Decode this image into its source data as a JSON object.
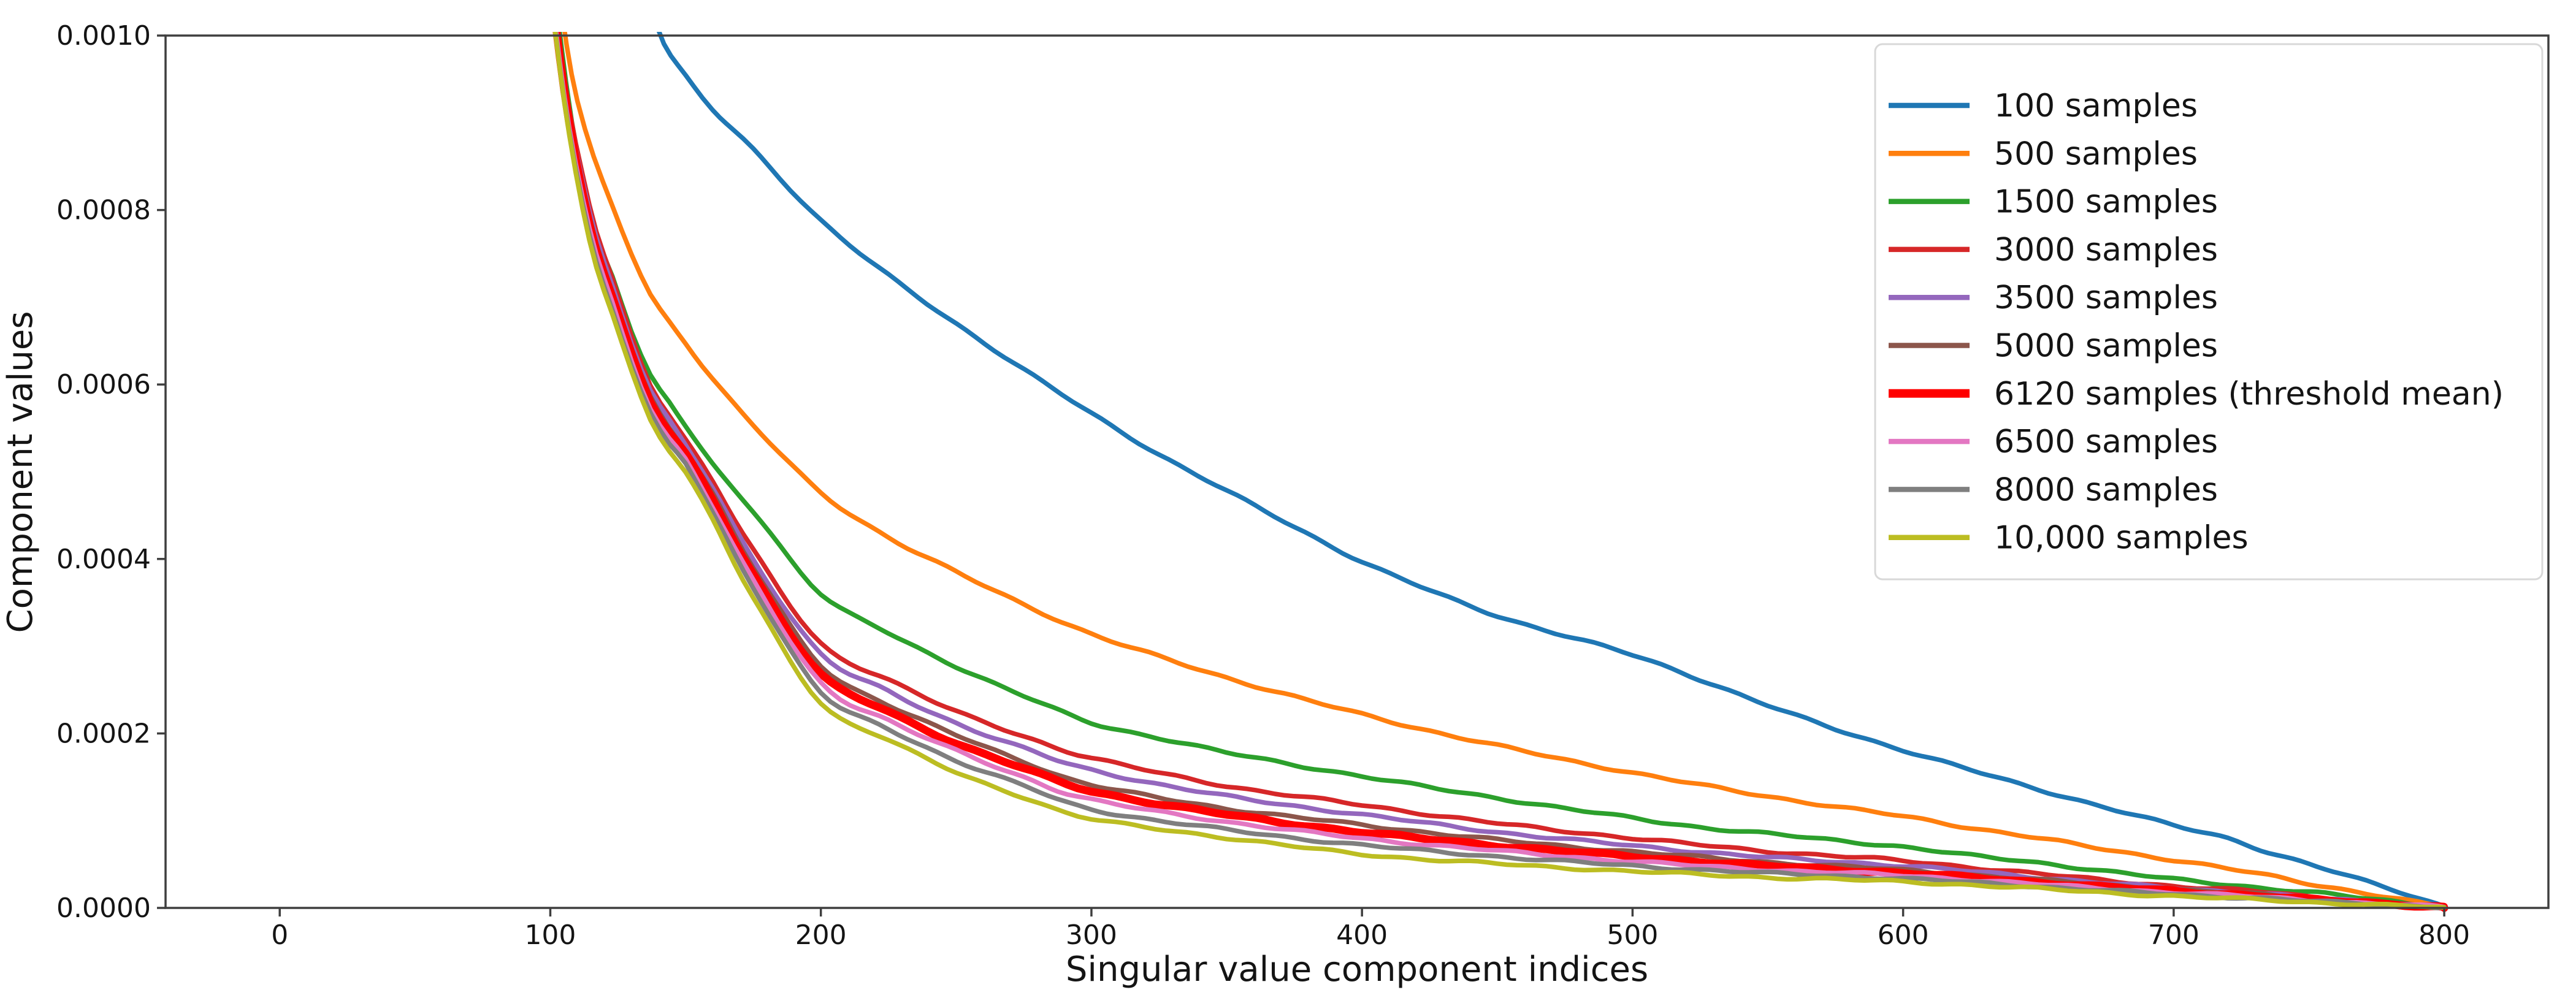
{
  "chart_data": {
    "type": "line",
    "title": "",
    "xlabel": "Singular value component indices",
    "ylabel": "Component values",
    "xlim": [
      -42.2,
      838.5
    ],
    "ylim": [
      0,
      0.001
    ],
    "grid": false,
    "legend_position": "upper right",
    "xticks": {
      "values": [
        0,
        100,
        200,
        300,
        400,
        500,
        600,
        700,
        800
      ],
      "labels": [
        "0",
        "100",
        "200",
        "300",
        "400",
        "500",
        "600",
        "700",
        "800"
      ]
    },
    "yticks": {
      "values": [
        0,
        0.0002,
        0.0004,
        0.0006,
        0.0008,
        0.001
      ],
      "labels": [
        "0.0000",
        "0.0002",
        "0.0004",
        "0.0006",
        "0.0008",
        "0.0010"
      ]
    },
    "series": [
      {
        "name": "100 samples",
        "color": "#1f77b4",
        "linewidth": 7.5,
        "x": [
          135,
          142,
          150,
          160,
          175,
          200,
          225,
          250,
          275,
          300,
          325,
          350,
          375,
          400,
          425,
          450,
          475,
          500,
          525,
          550,
          575,
          600,
          625,
          650,
          675,
          700,
          720,
          735,
          750,
          765,
          780,
          790,
          800
        ],
        "y": [
          0.00105,
          0.00099,
          0.000953,
          0.000915,
          0.00087,
          0.000788,
          0.000725,
          0.00067,
          0.000617,
          0.000567,
          0.00052,
          0.000478,
          0.000437,
          0.000397,
          0.000364,
          0.000335,
          0.000312,
          0.00029,
          0.000262,
          0.000232,
          0.000205,
          0.000181,
          0.000158,
          0.000136,
          0.000115,
          9.45e-05,
          8e-05,
          6.4e-05,
          5e-05,
          3.6e-05,
          2.2e-05,
          1.2e-05,
          2e-06
        ]
      },
      {
        "name": "500 samples",
        "color": "#ff7f0e",
        "linewidth": 7.5,
        "x": [
          102,
          106,
          110,
          116,
          123,
          130,
          137,
          144,
          150,
          160,
          175,
          200,
          225,
          250,
          275,
          300,
          325,
          350,
          375,
          400,
          425,
          450,
          475,
          500,
          525,
          550,
          575,
          600,
          625,
          650,
          675,
          700,
          720,
          735,
          750,
          765,
          780,
          790,
          800
        ],
        "y": [
          0.00108,
          0.00099,
          0.000924,
          0.00086,
          0.000804,
          0.00075,
          0.000703,
          0.000672,
          0.000648,
          0.000607,
          0.000553,
          0.000476,
          0.000425,
          0.000385,
          0.000348,
          0.000314,
          0.000288,
          0.000264,
          0.000242,
          0.000222,
          0.000203,
          0.000186,
          0.00017,
          0.000155,
          0.000141,
          0.000128,
          0.000116,
          0.000105,
          9.2e-05,
          8e-05,
          6.7e-05,
          5.5e-05,
          4.5e-05,
          3.7e-05,
          2.8e-05,
          2e-05,
          1.2e-05,
          6e-06,
          1e-06
        ]
      },
      {
        "name": "1500 samples",
        "color": "#2ca02c",
        "linewidth": 7.5,
        "x": [
          100.5,
          104,
          108,
          115,
          123,
          130,
          137,
          144,
          150,
          160,
          175,
          200,
          225,
          250,
          275,
          300,
          325,
          350,
          375,
          400,
          425,
          450,
          475,
          500,
          525,
          550,
          575,
          600,
          625,
          650,
          675,
          700,
          720,
          735,
          750,
          765,
          780,
          790,
          800
        ],
        "y": [
          0.00108,
          0.00099,
          0.0009,
          0.00079,
          0.000725,
          0.00066,
          0.00061,
          0.00058,
          0.000552,
          0.000508,
          0.000455,
          0.00036,
          0.000315,
          0.000277,
          0.000243,
          0.000212,
          0.000195,
          0.000178,
          0.000164,
          0.000151,
          0.000138,
          0.000126,
          0.000114,
          0.000103,
          9.25e-05,
          8.5e-05,
          7.75e-05,
          7e-05,
          6e-05,
          5.2e-05,
          4.2e-05,
          3.3e-05,
          2.7e-05,
          2.2e-05,
          1.8e-05,
          1.3e-05,
          8e-06,
          4e-06,
          1e-06
        ]
      },
      {
        "name": "3000 samples",
        "color": "#d62728",
        "linewidth": 7.5,
        "x": [
          100,
          103.5,
          107,
          112,
          117,
          123,
          130,
          137,
          144,
          150,
          160,
          175,
          200,
          225,
          250,
          275,
          300,
          350,
          400,
          450,
          500,
          550,
          600,
          650,
          700,
          735,
          750,
          775,
          800
        ],
        "y": [
          0.00108,
          0.00099,
          0.000915,
          0.00084,
          0.000775,
          0.00072,
          0.000655,
          0.0006,
          0.000565,
          0.000537,
          0.00049,
          0.00041,
          0.000303,
          0.000262,
          0.000225,
          0.000197,
          0.000172,
          0.00014,
          0.000118,
          9.7e-05,
          8e-05,
          6.5e-05,
          5.4e-05,
          3.9e-05,
          2.5e-05,
          1.8e-05,
          1.3e-05,
          7e-06,
          1e-06
        ]
      },
      {
        "name": "3500 samples",
        "color": "#9467bd",
        "linewidth": 7.5,
        "x": [
          100,
          103.5,
          107,
          112,
          117,
          123,
          130,
          137,
          144,
          150,
          160,
          175,
          200,
          225,
          250,
          275,
          300,
          350,
          400,
          450,
          500,
          550,
          600,
          650,
          700,
          735,
          750,
          775,
          800
        ],
        "y": [
          0.001075,
          0.000985,
          0.00091,
          0.000833,
          0.000768,
          0.000713,
          0.000648,
          0.000593,
          0.000558,
          0.00053,
          0.000482,
          0.0004,
          0.000291,
          0.000248,
          0.000212,
          0.000183,
          0.000158,
          0.000128,
          0.000107,
          8.7e-05,
          7.14e-05,
          5.8e-05,
          4.83e-05,
          3.5e-05,
          2.24e-05,
          1.6e-05,
          1.15e-05,
          6e-06,
          1e-06
        ]
      },
      {
        "name": "5000 samples",
        "color": "#8c564b",
        "linewidth": 7.5,
        "x": [
          100,
          103.5,
          107,
          112,
          117,
          123,
          130,
          137,
          144,
          150,
          160,
          175,
          200,
          225,
          250,
          275,
          300,
          350,
          400,
          450,
          500,
          550,
          600,
          650,
          700,
          735,
          750,
          775,
          800
        ],
        "y": [
          0.00107,
          0.00098,
          0.000905,
          0.000826,
          0.000761,
          0.000706,
          0.000641,
          0.000586,
          0.000551,
          0.000525,
          0.000475,
          0.00039,
          0.000278,
          0.000233,
          0.000198,
          0.000168,
          0.000141,
          0.000114,
          9.52e-05,
          7.8e-05,
          6.44e-05,
          5.25e-05,
          4.34e-05,
          3.2e-05,
          2.1e-05,
          1.48e-05,
          1.05e-05,
          5.5e-06,
          1e-06
        ]
      },
      {
        "name": "6120 samples (threshold mean)",
        "color": "#ff0000",
        "linewidth": 13,
        "x": [
          100,
          103.5,
          107,
          112,
          117,
          123,
          130,
          137,
          144,
          150,
          160,
          175,
          200,
          225,
          250,
          275,
          300,
          350,
          400,
          450,
          500,
          550,
          600,
          650,
          700,
          735,
          750,
          775,
          797,
          800
        ],
        "y": [
          0.001065,
          0.000975,
          0.0009,
          0.00082,
          0.000755,
          0.0007,
          0.000635,
          0.00058,
          0.000545,
          0.00052,
          0.000468,
          0.000383,
          0.000268,
          0.000225,
          0.000189,
          0.00016,
          0.000134,
          0.000107,
          8.68e-05,
          7.15e-05,
          5.88e-05,
          4.8e-05,
          3.99e-05,
          2.93e-05,
          1.89e-05,
          1.33e-05,
          9.5e-06,
          5e-06,
          2e-06,
          0
        ]
      },
      {
        "name": "6500 samples",
        "color": "#e377c2",
        "linewidth": 7.5,
        "x": [
          100,
          103.5,
          107,
          112,
          117,
          123,
          130,
          137,
          144,
          150,
          160,
          175,
          200,
          225,
          250,
          275,
          300,
          350,
          400,
          450,
          500,
          550,
          600,
          650,
          700,
          735,
          750,
          775,
          800
        ],
        "y": [
          0.00106,
          0.00097,
          0.000895,
          0.000813,
          0.000748,
          0.000693,
          0.000628,
          0.000573,
          0.000538,
          0.000515,
          0.00046,
          0.000375,
          0.000258,
          0.000215,
          0.00018,
          0.00015,
          0.000124,
          9.88e-05,
          7.98e-05,
          6.55e-05,
          5.32e-05,
          4.37e-05,
          3.71e-05,
          2.7e-05,
          1.75e-05,
          1.22e-05,
          8.8e-06,
          4.6e-06,
          1e-06
        ]
      },
      {
        "name": "8000 samples",
        "color": "#7f7f7f",
        "linewidth": 7.5,
        "x": [
          100,
          103.5,
          107,
          112,
          117,
          123,
          130,
          137,
          144,
          150,
          160,
          175,
          200,
          225,
          250,
          275,
          300,
          350,
          400,
          450,
          500,
          550,
          600,
          650,
          700,
          735,
          750,
          775,
          800
        ],
        "y": [
          0.001055,
          0.000965,
          0.00089,
          0.000806,
          0.000741,
          0.000686,
          0.000621,
          0.000566,
          0.000531,
          0.00051,
          0.000453,
          0.000368,
          0.000247,
          0.000205,
          0.000169,
          0.00014,
          0.000113,
          8.96e-05,
          7.21e-05,
          5.9e-05,
          4.83e-05,
          3.98e-05,
          3.36e-05,
          2.45e-05,
          1.55e-05,
          1.08e-05,
          7.8e-06,
          4.1e-06,
          1e-06
        ]
      },
      {
        "name": "10,000 samples",
        "color": "#bcbd22",
        "linewidth": 7.5,
        "x": [
          100,
          103.5,
          107,
          112,
          117,
          123,
          130,
          137,
          144,
          150,
          160,
          175,
          200,
          225,
          250,
          275,
          300,
          350,
          400,
          450,
          500,
          550,
          600,
          650,
          700,
          735,
          750,
          775,
          800
        ],
        "y": [
          0.00105,
          0.00096,
          0.000885,
          0.0008,
          0.000735,
          0.00068,
          0.000615,
          0.00056,
          0.000525,
          0.0005,
          0.000445,
          0.000355,
          0.000235,
          0.000193,
          0.000155,
          0.000127,
          0.000102,
          8.05e-05,
          6.16e-05,
          5.06e-05,
          4.2e-05,
          3.5e-05,
          3.01e-05,
          2.2e-05,
          1.33e-05,
          9.2e-06,
          6.6e-06,
          3.4e-06,
          5e-07
        ]
      }
    ]
  },
  "colors": {
    "spine": "#3f3f3f",
    "tick": "#3f3f3f",
    "text": "#141414",
    "legend_border": "#d8d8d8",
    "legend_bg": "#ffffff"
  }
}
